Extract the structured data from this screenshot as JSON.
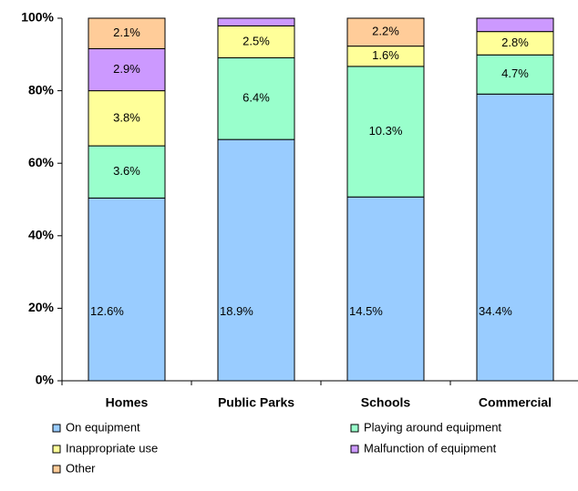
{
  "chart_data": {
    "type": "bar",
    "stacking": "percent",
    "categories": [
      "Homes",
      "Public Parks",
      "Schools",
      "Commercial"
    ],
    "series": [
      {
        "name": "On equipment",
        "color": "#99ccff",
        "values": [
          12.6,
          18.9,
          14.5,
          34.4
        ],
        "value_labels": [
          "12.6%",
          "18.9%",
          "14.5%",
          "34.4%"
        ]
      },
      {
        "name": "Playing around equipment",
        "color": "#99ffcc",
        "values": [
          3.6,
          6.4,
          10.3,
          4.7
        ],
        "value_labels": [
          "3.6%",
          "6.4%",
          "10.3%",
          "4.7%"
        ]
      },
      {
        "name": "Inappropriate use",
        "color": "#ffff99",
        "values": [
          3.8,
          2.5,
          1.6,
          2.8
        ],
        "value_labels": [
          "3.8%",
          "2.5%",
          "1.6%",
          "2.8%"
        ]
      },
      {
        "name": "Malfunction of equipment",
        "color": "#cc99ff",
        "values": [
          2.9,
          0.6,
          null,
          1.6
        ],
        "value_labels": [
          "2.9%",
          null,
          null,
          null
        ]
      },
      {
        "name": "Other",
        "color": "#ffcc99",
        "values": [
          2.1,
          null,
          2.2,
          null
        ],
        "value_labels": [
          "2.1%",
          null,
          "2.2%",
          null
        ]
      }
    ],
    "ylim": [
      0,
      100
    ],
    "yticks": [
      {
        "value": 0,
        "label": "0%"
      },
      {
        "value": 20,
        "label": "20%"
      },
      {
        "value": 40,
        "label": "40%"
      },
      {
        "value": 60,
        "label": "60%"
      },
      {
        "value": 80,
        "label": "80%"
      },
      {
        "value": 100,
        "label": "100%"
      }
    ],
    "grid": false,
    "legend": "bottom"
  }
}
